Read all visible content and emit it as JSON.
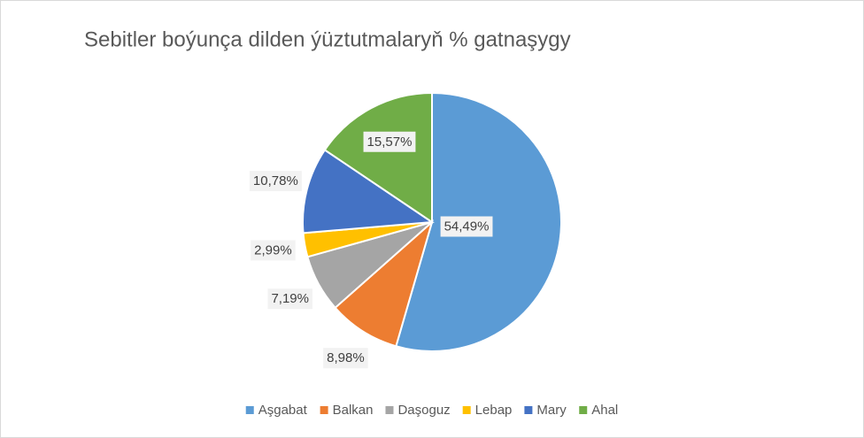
{
  "chart_data": {
    "type": "pie",
    "title": "Sebitler boýunça dilden ýüztutmalaryň % gatnaşygy",
    "categories": [
      "Aşgabat",
      "Balkan",
      "Daşoguz",
      "Lebap",
      "Mary",
      "Ahal"
    ],
    "values": [
      54.49,
      8.98,
      7.19,
      2.99,
      10.78,
      15.57
    ],
    "value_labels": [
      "54,49%",
      "8,98%",
      "7,19%",
      "2,99%",
      "10,78%",
      "15,57%"
    ],
    "colors": [
      "#5b9bd5",
      "#ed7d31",
      "#a5a5a5",
      "#ffc000",
      "#4472c4",
      "#70ad47"
    ],
    "legend": "bottom"
  }
}
